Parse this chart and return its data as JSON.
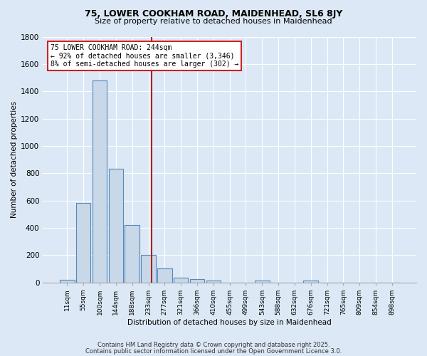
{
  "title_line1": "75, LOWER COOKHAM ROAD, MAIDENHEAD, SL6 8JY",
  "title_line2": "Size of property relative to detached houses in Maidenhead",
  "xlabel": "Distribution of detached houses by size in Maidenhead",
  "ylabel": "Number of detached properties",
  "bin_labels": [
    "11sqm",
    "55sqm",
    "100sqm",
    "144sqm",
    "188sqm",
    "233sqm",
    "277sqm",
    "321sqm",
    "366sqm",
    "410sqm",
    "455sqm",
    "499sqm",
    "543sqm",
    "588sqm",
    "632sqm",
    "676sqm",
    "721sqm",
    "765sqm",
    "809sqm",
    "854sqm",
    "898sqm"
  ],
  "bar_heights": [
    20,
    580,
    1480,
    830,
    420,
    200,
    100,
    35,
    25,
    15,
    0,
    0,
    12,
    0,
    0,
    15,
    0,
    0,
    0,
    0,
    0
  ],
  "bar_color": "#c8d8e8",
  "bar_edge_color": "#5588bb",
  "background_color": "#dce8f5",
  "grid_color": "#ffffff",
  "vline_x": 5.18,
  "vline_color": "#aa2222",
  "annotation_text": "75 LOWER COOKHAM ROAD: 244sqm\n← 92% of detached houses are smaller (3,346)\n8% of semi-detached houses are larger (302) →",
  "annotation_box_color": "#ffffff",
  "annotation_box_edge": "#cc2222",
  "ylim": [
    0,
    1800
  ],
  "yticks": [
    0,
    200,
    400,
    600,
    800,
    1000,
    1200,
    1400,
    1600,
    1800
  ],
  "footer_line1": "Contains HM Land Registry data © Crown copyright and database right 2025.",
  "footer_line2": "Contains public sector information licensed under the Open Government Licence 3.0."
}
